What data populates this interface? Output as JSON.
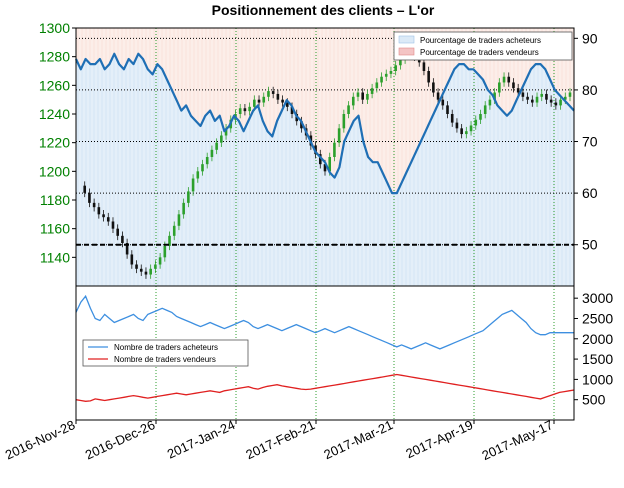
{
  "chart_data": {
    "type": "line",
    "title": "Positionnement des clients – L'or",
    "x_tick_labels": [
      "2016-Nov-28",
      "2016-Dec-26",
      "2017-Jan-24",
      "2017-Feb-21",
      "2017-Mar-21",
      "2017-Apr-19",
      "2017-May-17"
    ],
    "top_panel": {
      "price_axis": {
        "ticks": [
          1140,
          1160,
          1180,
          1200,
          1220,
          1240,
          1260,
          1280,
          1300
        ],
        "range": [
          1120,
          1300
        ],
        "color": "#008000"
      },
      "percent_axis": {
        "ticks": [
          50,
          60,
          70,
          80,
          90
        ],
        "range": [
          42,
          92
        ]
      },
      "reference_line": 50,
      "legend": [
        "Pourcentage de traders acheteurs",
        "Pourcentage de traders vendeurs"
      ],
      "colors": {
        "long_fill": "#dceaf7",
        "short_fill": "#fbe8e2",
        "percent_line": "#1f6fb5",
        "candle_up": "#2ca02c",
        "candle_down": "#111111"
      },
      "percent_long_series": [
        86,
        84,
        86,
        85,
        85,
        86,
        84,
        85,
        87,
        85,
        84,
        86,
        85,
        87,
        86,
        84,
        83,
        85,
        84,
        82,
        80,
        78,
        76,
        77,
        75,
        74,
        73,
        75,
        76,
        74,
        75,
        72,
        73,
        75,
        74,
        72,
        74,
        76,
        77,
        74,
        72,
        71,
        74,
        76,
        78,
        77,
        75,
        74,
        72,
        70,
        68,
        67,
        66,
        64,
        63,
        65,
        70,
        72,
        74,
        75,
        70,
        67,
        66,
        66,
        64,
        62,
        60,
        60,
        62,
        64,
        66,
        68,
        70,
        72,
        74,
        76,
        78,
        80,
        82,
        84,
        85,
        85,
        84,
        84,
        83,
        82,
        80,
        79,
        77,
        76,
        75,
        76,
        78,
        80,
        82,
        84,
        85,
        85,
        84,
        82,
        80,
        79,
        78,
        77,
        76
      ],
      "price_close_series": [
        1190,
        1185,
        1178,
        1175,
        1170,
        1168,
        1165,
        1160,
        1155,
        1150,
        1142,
        1135,
        1132,
        1130,
        1128,
        1132,
        1135,
        1140,
        1148,
        1155,
        1162,
        1170,
        1178,
        1186,
        1195,
        1200,
        1205,
        1210,
        1215,
        1220,
        1225,
        1230,
        1236,
        1240,
        1244,
        1242,
        1245,
        1250,
        1248,
        1252,
        1256,
        1254,
        1250,
        1248,
        1245,
        1240,
        1235,
        1230,
        1225,
        1218,
        1212,
        1205,
        1200,
        1210,
        1220,
        1230,
        1240,
        1246,
        1252,
        1255,
        1250,
        1254,
        1258,
        1262,
        1266,
        1268,
        1270,
        1274,
        1278,
        1282,
        1286,
        1280,
        1276,
        1270,
        1262,
        1255,
        1250,
        1246,
        1240,
        1234,
        1230,
        1226,
        1228,
        1232,
        1236,
        1240,
        1246,
        1250,
        1255,
        1262,
        1266,
        1262,
        1258,
        1255,
        1252,
        1250,
        1248,
        1252,
        1254,
        1250,
        1248,
        1246,
        1250,
        1252,
        1255
      ]
    },
    "bottom_panel": {
      "count_axis": {
        "ticks": [
          500,
          1000,
          1500,
          2000,
          2500,
          3000
        ],
        "range": [
          0,
          3300
        ]
      },
      "legend": [
        "Nombre de traders acheteurs",
        "Nombre de traders vendeurs"
      ],
      "colors": {
        "long": "#3d8fe0",
        "short": "#e02020"
      },
      "long_count_series": [
        2650,
        2900,
        3050,
        2750,
        2500,
        2450,
        2600,
        2500,
        2400,
        2450,
        2500,
        2550,
        2600,
        2500,
        2450,
        2600,
        2650,
        2700,
        2750,
        2700,
        2650,
        2550,
        2500,
        2450,
        2400,
        2350,
        2300,
        2350,
        2400,
        2350,
        2300,
        2250,
        2300,
        2350,
        2400,
        2450,
        2400,
        2300,
        2250,
        2300,
        2350,
        2300,
        2250,
        2200,
        2250,
        2300,
        2350,
        2300,
        2250,
        2200,
        2150,
        2200,
        2250,
        2200,
        2150,
        2200,
        2250,
        2300,
        2250,
        2200,
        2150,
        2100,
        2050,
        2000,
        1950,
        1900,
        1850,
        1800,
        1850,
        1800,
        1750,
        1800,
        1850,
        1900,
        1850,
        1800,
        1750,
        1800,
        1850,
        1900,
        1950,
        2000,
        2050,
        2100,
        2150,
        2200,
        2300,
        2400,
        2500,
        2600,
        2650,
        2700,
        2600,
        2500,
        2400,
        2250,
        2150,
        2100,
        2100,
        2150,
        2150,
        2150,
        2150,
        2150,
        2150
      ],
      "short_count_series": [
        500,
        480,
        460,
        470,
        520,
        500,
        480,
        500,
        520,
        540,
        560,
        580,
        600,
        580,
        560,
        540,
        560,
        580,
        600,
        620,
        640,
        660,
        640,
        620,
        640,
        660,
        680,
        700,
        720,
        700,
        680,
        720,
        740,
        760,
        780,
        800,
        820,
        780,
        760,
        800,
        830,
        850,
        870,
        840,
        820,
        800,
        780,
        760,
        750,
        760,
        780,
        800,
        820,
        840,
        860,
        880,
        900,
        920,
        940,
        960,
        980,
        1000,
        1020,
        1040,
        1060,
        1080,
        1100,
        1120,
        1100,
        1080,
        1060,
        1040,
        1020,
        1000,
        980,
        960,
        940,
        920,
        900,
        880,
        860,
        840,
        820,
        800,
        780,
        760,
        740,
        720,
        700,
        680,
        660,
        640,
        620,
        600,
        580,
        560,
        540,
        520,
        560,
        600,
        640,
        680,
        700,
        720,
        740
      ]
    }
  }
}
